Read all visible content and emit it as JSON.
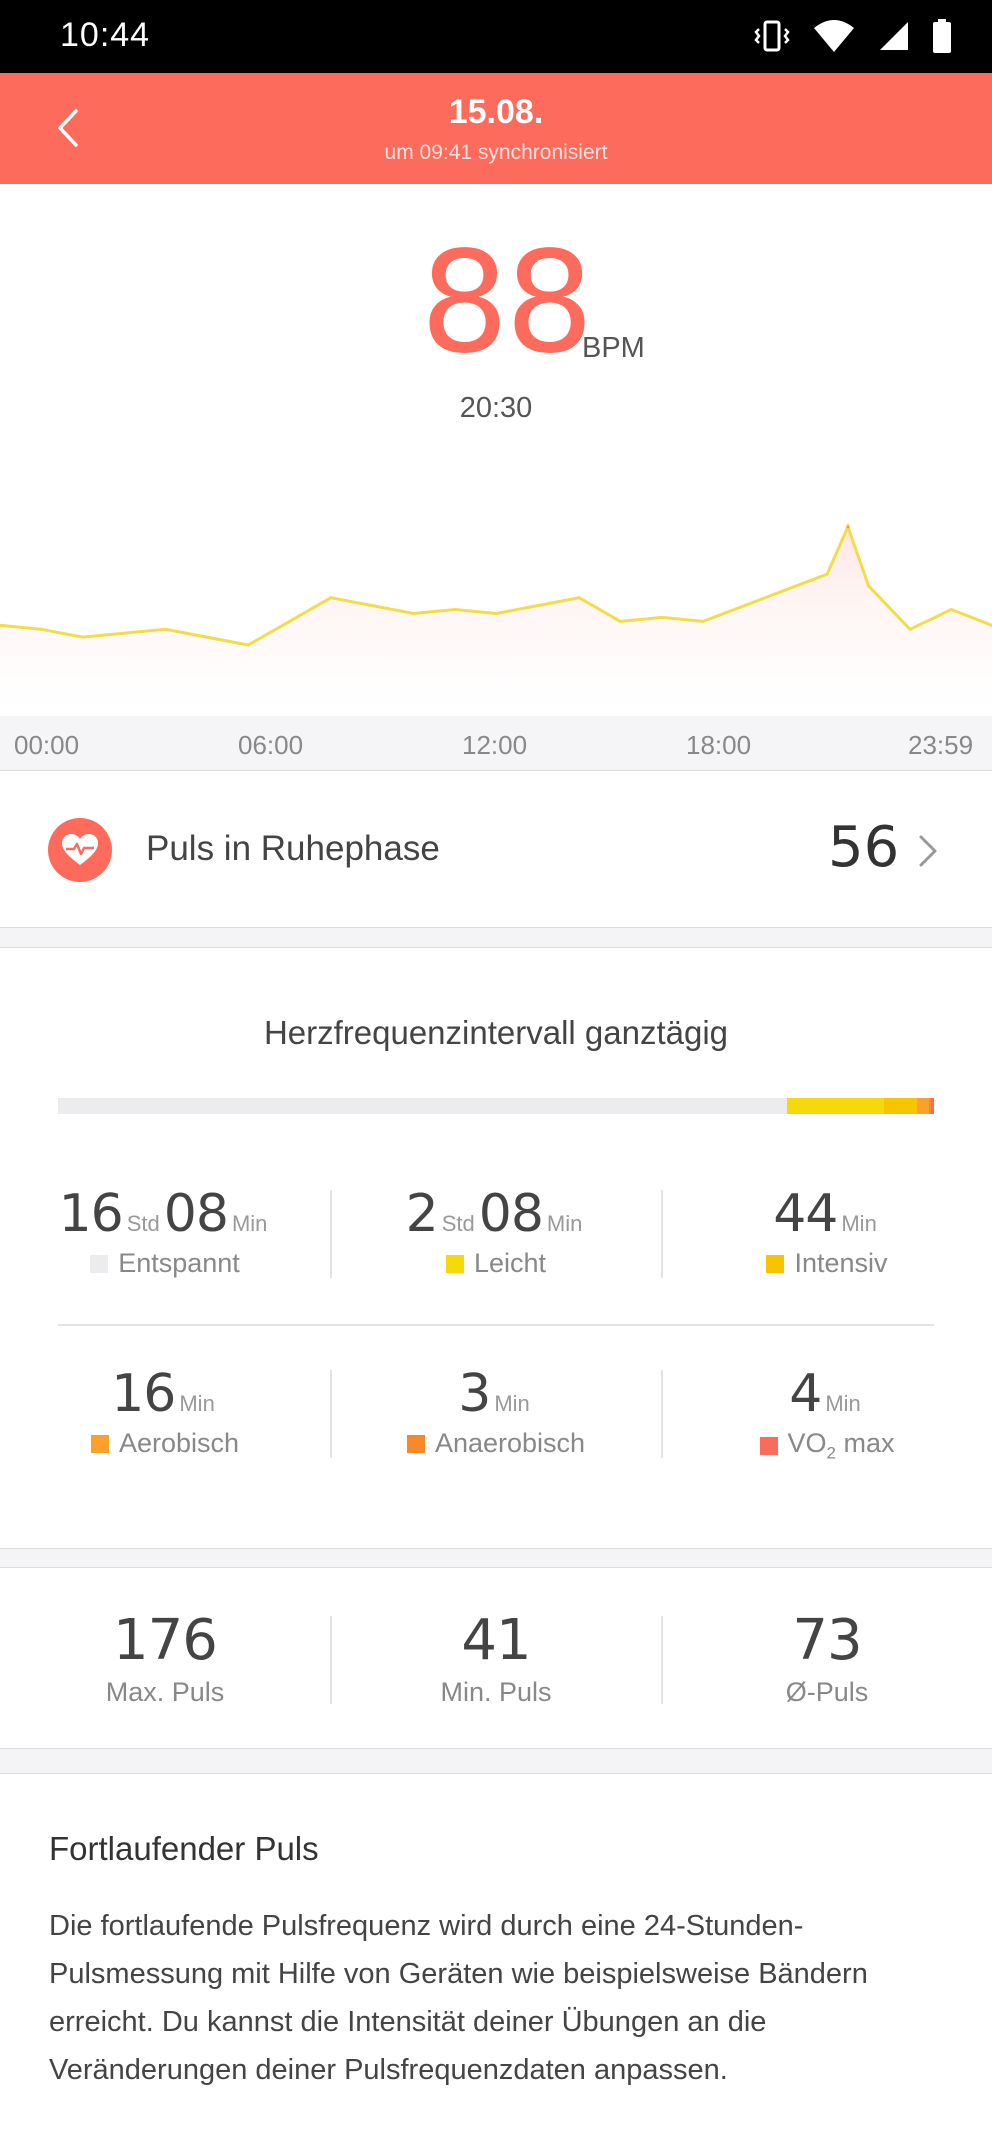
{
  "status_bar": {
    "time": "10:44"
  },
  "header": {
    "title": "15.08.",
    "subtitle": "um 09:41 synchronisiert"
  },
  "current": {
    "bpm": "88",
    "unit": "BPM",
    "time": "20:30"
  },
  "colors": {
    "accent": "#fd6b5c",
    "relaxed": "#ececee",
    "light": "#f5d90a",
    "intensive": "#f7c400",
    "aerobic": "#f9a12b",
    "anaerobic": "#f7892a",
    "vo2max": "#f76c5b",
    "chart_line": "#f3dc4a"
  },
  "chart_data": {
    "type": "line",
    "x_labels": [
      "00:00",
      "06:00",
      "12:00",
      "18:00",
      "23:59"
    ],
    "x": [
      "00:00",
      "01:00",
      "02:00",
      "03:00",
      "04:00",
      "05:00",
      "06:00",
      "07:00",
      "08:00",
      "09:00",
      "10:00",
      "11:00",
      "12:00",
      "13:00",
      "14:00",
      "15:00",
      "16:00",
      "17:00",
      "18:00",
      "19:00",
      "20:00",
      "20:30",
      "21:00",
      "22:00",
      "23:00",
      "23:59"
    ],
    "values": [
      63,
      62,
      60,
      61,
      62,
      60,
      58,
      64,
      70,
      68,
      66,
      67,
      66,
      68,
      70,
      64,
      65,
      64,
      68,
      72,
      76,
      88,
      73,
      62,
      67,
      63
    ],
    "ylim": [
      40,
      110
    ]
  },
  "resting": {
    "label": "Puls in Ruhephase",
    "value": "56",
    "icon": "heart-pulse-icon"
  },
  "zones": {
    "heading": "Herzfrequenzintervall ganztägig",
    "bar": [
      {
        "name": "relaxed",
        "minutes": 968
      },
      {
        "name": "light",
        "minutes": 128
      },
      {
        "name": "intensive",
        "minutes": 44
      },
      {
        "name": "aerobic",
        "minutes": 16
      },
      {
        "name": "anaerobic",
        "minutes": 3
      },
      {
        "name": "vo2max",
        "minutes": 4
      }
    ],
    "relaxed": {
      "h": "16",
      "h_unit": "Std",
      "m": "08",
      "m_unit": "Min",
      "label": "Entspannt"
    },
    "light": {
      "h": "2",
      "h_unit": "Std",
      "m": "08",
      "m_unit": "Min",
      "label": "Leicht"
    },
    "intensive": {
      "m": "44",
      "m_unit": "Min",
      "label": "Intensiv"
    },
    "aerobic": {
      "m": "16",
      "m_unit": "Min",
      "label": "Aerobisch"
    },
    "anaerobic": {
      "m": "3",
      "m_unit": "Min",
      "label": "Anaerobisch"
    },
    "vo2max": {
      "m": "4",
      "m_unit": "Min",
      "label_main": "VO",
      "label_sub": "2",
      "label_rest": " max"
    }
  },
  "summary": {
    "max": {
      "value": "176",
      "label": "Max. Puls"
    },
    "min": {
      "value": "41",
      "label": "Min. Puls"
    },
    "avg": {
      "value": "73",
      "label": "Ø-Puls"
    }
  },
  "info": {
    "title": "Fortlaufender Puls",
    "body": "Die fortlaufende Pulsfrequenz wird durch eine 24-Stunden-Pulsmessung mit Hilfe von Geräten wie beispielsweise Bändern erreicht. Du kannst die Intensität deiner Übungen an die Veränderungen deiner Pulsfrequenzdaten anpassen."
  }
}
